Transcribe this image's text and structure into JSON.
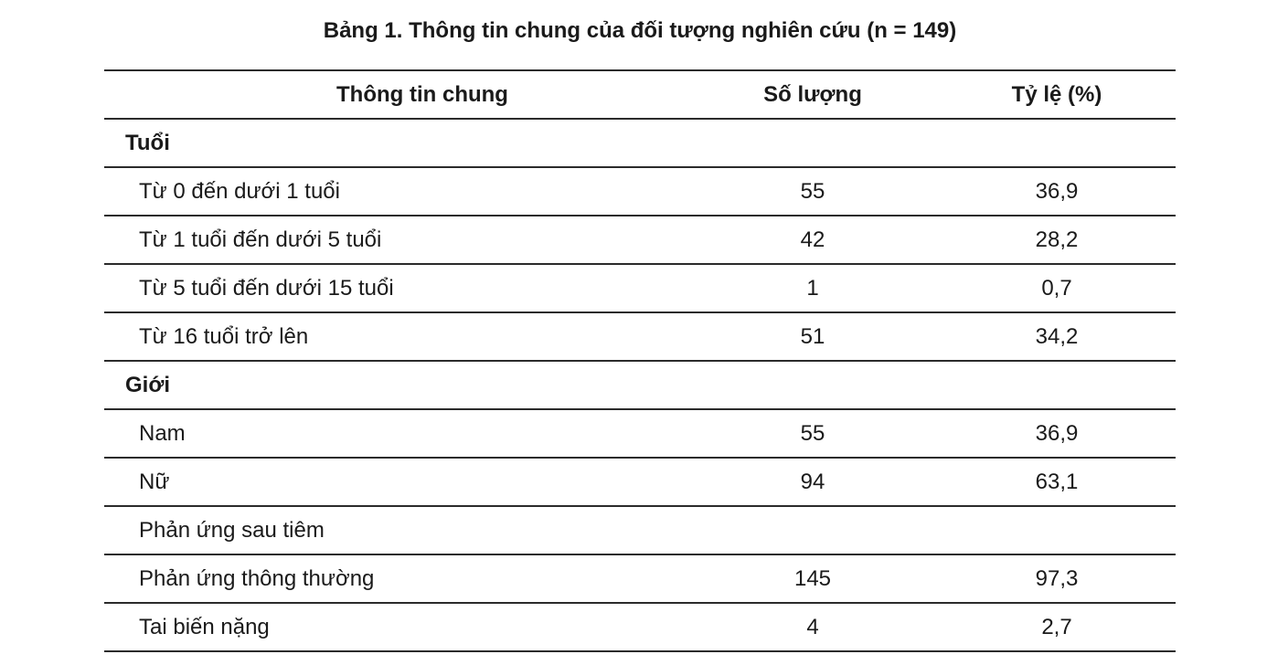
{
  "caption": "Bảng 1. Thông tin chung của đối tượng nghiên cứu (n = 149)",
  "columns": {
    "info": "Thông tin chung",
    "count": "Số lượng",
    "percent": "Tỷ lệ (%)"
  },
  "rows": [
    {
      "label": "Tuổi",
      "count": "",
      "percent": ""
    },
    {
      "label": "Từ 0 đến dưới 1 tuổi",
      "count": "55",
      "percent": "36,9"
    },
    {
      "label": "Từ 1 tuổi đến dưới 5 tuổi",
      "count": "42",
      "percent": "28,2"
    },
    {
      "label": "Từ 5 tuổi đến dưới 15 tuổi",
      "count": "1",
      "percent": "0,7"
    },
    {
      "label": "Từ 16 tuổi trở lên",
      "count": "51",
      "percent": "34,2"
    },
    {
      "label": "Giới",
      "count": "",
      "percent": ""
    },
    {
      "label": "Nam",
      "count": "55",
      "percent": "36,9"
    },
    {
      "label": "Nữ",
      "count": "94",
      "percent": "63,1"
    },
    {
      "label": "Phản ứng sau tiêm",
      "count": "",
      "percent": ""
    },
    {
      "label": "Phản ứng thông thường",
      "count": "145",
      "percent": "97,3"
    },
    {
      "label": "Tai biến nặng",
      "count": "4",
      "percent": "2,7"
    }
  ]
}
